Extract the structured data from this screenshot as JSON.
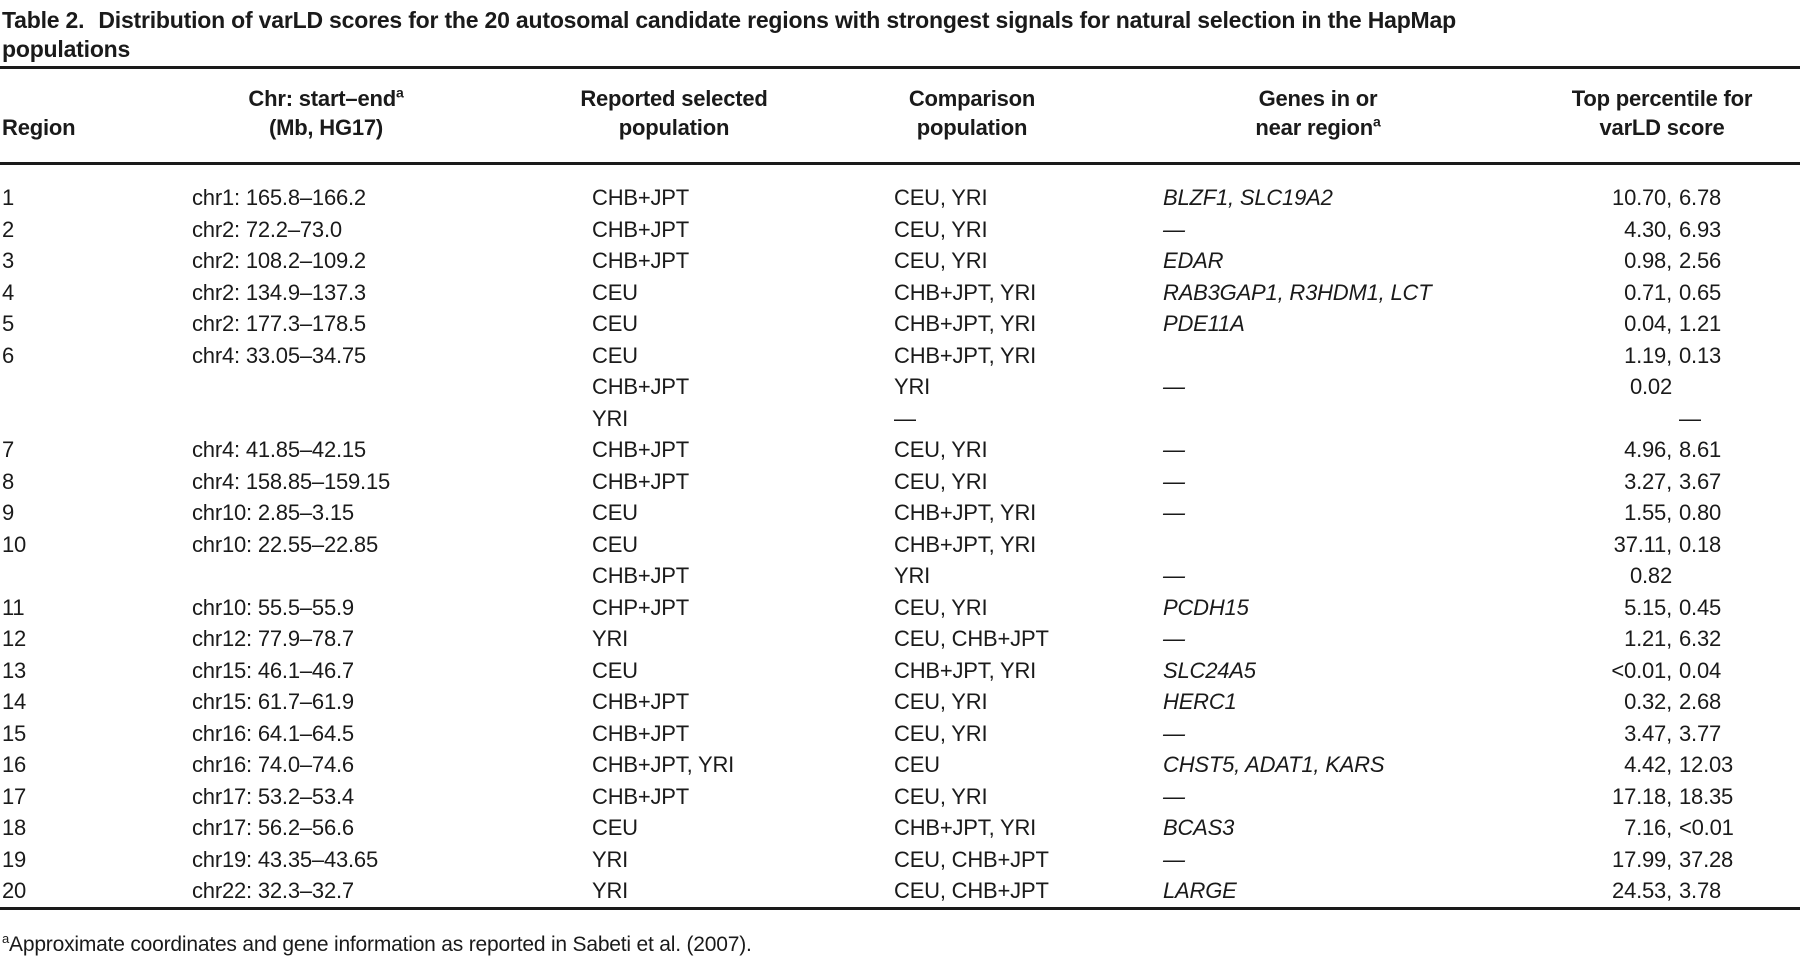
{
  "title": {
    "label": "Table 2.",
    "line1": "Distribution of varLD scores for the 20 autosomal candidate regions with strongest signals for natural selection in the HapMap",
    "line2": "populations"
  },
  "columns": [
    {
      "id": "region",
      "line1": "",
      "sup1": "",
      "line2": "Region",
      "sup2": ""
    },
    {
      "id": "chr",
      "line1": "Chr: start–end",
      "sup1": "a",
      "line2": "(Mb, HG17)",
      "sup2": ""
    },
    {
      "id": "selected",
      "line1": "Reported selected",
      "sup1": "",
      "line2": "population",
      "sup2": ""
    },
    {
      "id": "comparison",
      "line1": "Comparison",
      "sup1": "",
      "line2": "population",
      "sup2": ""
    },
    {
      "id": "genes",
      "line1": "Genes in or",
      "sup1": "",
      "line2": "near region",
      "sup2": "a"
    },
    {
      "id": "score",
      "line1": "Top percentile for",
      "sup1": "",
      "line2": "varLD score",
      "sup2": ""
    }
  ],
  "rows": [
    {
      "region": "1",
      "chr": "chr1: 165.8–166.2",
      "selected": "CHB+JPT",
      "comparison": "CEU, YRI",
      "genes": "BLZF1, SLC19A2",
      "score": "10.70, 6.78"
    },
    {
      "region": "2",
      "chr": "chr2: 72.2–73.0",
      "selected": "CHB+JPT",
      "comparison": "CEU, YRI",
      "genes": "—",
      "score": "4.30, 6.93"
    },
    {
      "region": "3",
      "chr": "chr2: 108.2–109.2",
      "selected": "CHB+JPT",
      "comparison": "CEU, YRI",
      "genes": "EDAR",
      "score": "0.98, 2.56"
    },
    {
      "region": "4",
      "chr": "chr2: 134.9–137.3",
      "selected": "CEU",
      "comparison": "CHB+JPT, YRI",
      "genes": "RAB3GAP1, R3HDM1, LCT",
      "score": "0.71, 0.65"
    },
    {
      "region": "5",
      "chr": "chr2: 177.3–178.5",
      "selected": "CEU",
      "comparison": "CHB+JPT, YRI",
      "genes": "PDE11A",
      "score": "0.04, 1.21"
    },
    {
      "region": "6",
      "chr": "chr4: 33.05–34.75",
      "selected": "CEU",
      "comparison": "CHB+JPT, YRI",
      "genes": "",
      "score": "1.19, 0.13"
    },
    {
      "region": "",
      "chr": "",
      "selected": "CHB+JPT",
      "comparison": "YRI",
      "genes": "—",
      "score": "0.02"
    },
    {
      "region": "",
      "chr": "",
      "selected": "YRI",
      "comparison": "—",
      "genes": "",
      "score": "—"
    },
    {
      "region": "7",
      "chr": "chr4: 41.85–42.15",
      "selected": "CHB+JPT",
      "comparison": "CEU, YRI",
      "genes": "—",
      "score": "4.96, 8.61"
    },
    {
      "region": "8",
      "chr": "chr4: 158.85–159.15",
      "selected": "CHB+JPT",
      "comparison": "CEU, YRI",
      "genes": "—",
      "score": "3.27, 3.67"
    },
    {
      "region": "9",
      "chr": "chr10: 2.85–3.15",
      "selected": "CEU",
      "comparison": "CHB+JPT, YRI",
      "genes": "—",
      "score": "1.55, 0.80"
    },
    {
      "region": "10",
      "chr": "chr10: 22.55–22.85",
      "selected": "CEU",
      "comparison": "CHB+JPT, YRI",
      "genes": "",
      "score": "37.11, 0.18"
    },
    {
      "region": "",
      "chr": "",
      "selected": "CHB+JPT",
      "comparison": "YRI",
      "genes": "—",
      "score": "0.82"
    },
    {
      "region": "11",
      "chr": "chr10: 55.5–55.9",
      "selected": "CHP+JPT",
      "comparison": "CEU, YRI",
      "genes": "PCDH15",
      "score": "5.15, 0.45"
    },
    {
      "region": "12",
      "chr": "chr12: 77.9–78.7",
      "selected": "YRI",
      "comparison": "CEU, CHB+JPT",
      "genes": "—",
      "score": "1.21, 6.32"
    },
    {
      "region": "13",
      "chr": "chr15: 46.1–46.7",
      "selected": "CEU",
      "comparison": "CHB+JPT, YRI",
      "genes": "SLC24A5",
      "score": "<0.01, 0.04"
    },
    {
      "region": "14",
      "chr": "chr15: 61.7–61.9",
      "selected": "CHB+JPT",
      "comparison": "CEU, YRI",
      "genes": "HERC1",
      "score": "0.32, 2.68"
    },
    {
      "region": "15",
      "chr": "chr16: 64.1–64.5",
      "selected": "CHB+JPT",
      "comparison": "CEU, YRI",
      "genes": "—",
      "score": "3.47, 3.77"
    },
    {
      "region": "16",
      "chr": "chr16: 74.0–74.6",
      "selected": "CHB+JPT, YRI",
      "comparison": "CEU",
      "genes": "CHST5, ADAT1, KARS",
      "score": "4.42, 12.03"
    },
    {
      "region": "17",
      "chr": "chr17: 53.2–53.4",
      "selected": "CHB+JPT",
      "comparison": "CEU, YRI",
      "genes": "—",
      "score": "17.18, 18.35"
    },
    {
      "region": "18",
      "chr": "chr17: 56.2–56.6",
      "selected": "CEU",
      "comparison": "CHB+JPT, YRI",
      "genes": "BCAS3",
      "score": "7.16, <0.01"
    },
    {
      "region": "19",
      "chr": "chr19: 43.35–43.65",
      "selected": "YRI",
      "comparison": "CEU, CHB+JPT",
      "genes": "—",
      "score": "17.99, 37.28"
    },
    {
      "region": "20",
      "chr": "chr22: 32.3–32.7",
      "selected": "YRI",
      "comparison": "CEU, CHB+JPT",
      "genes": "LARGE",
      "score": "24.53, 3.78"
    }
  ],
  "footnote": {
    "sup": "a",
    "text": "Approximate coordinates and gene information as reported in Sabeti et al. (2007)."
  }
}
